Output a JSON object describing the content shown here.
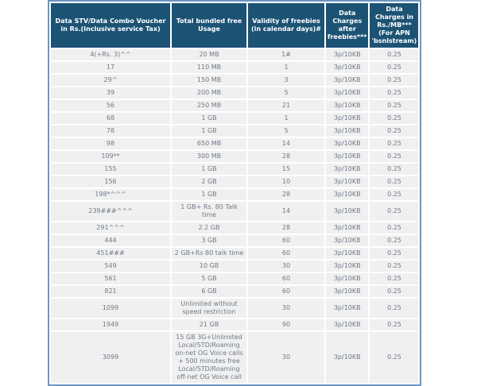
{
  "chart_data": {
    "type": "table",
    "title": "Data STV / Data Combo Voucher tariff table",
    "columns": [
      "Data STV/Data Combo Voucher in Rs.(Inclusive service Tax)",
      "Total bundled free Usage",
      "Validity of freebies (in calendar days)#",
      "Data Charges after freebies***",
      "Data Charges in Rs./MB*** (For APN 'bsnlstream)"
    ],
    "rows": [
      [
        "4(+Rs. 3)^^",
        "20 MB",
        "1#",
        "3p/10KB",
        "0.25"
      ],
      [
        "17",
        "110 MB",
        "1",
        "3p/10KB",
        "0.25"
      ],
      [
        "29^",
        "150 MB",
        "3",
        "3p/10KB",
        "0.25"
      ],
      [
        "39",
        "200 MB",
        "5",
        "3p/10KB",
        "0.25"
      ],
      [
        "56",
        "250 MB",
        "21",
        "3p/10KB",
        "0.25"
      ],
      [
        "68",
        "1 GB",
        "1",
        "3p/10KB",
        "0.25"
      ],
      [
        "78",
        "1 GB",
        "5",
        "3p/10KB",
        "0.25"
      ],
      [
        "98",
        "650 MB",
        "14",
        "3p/10KB",
        "0.25"
      ],
      [
        "109**",
        "300 MB",
        "28",
        "3p/10KB",
        "0.25"
      ],
      [
        "155",
        "1 GB",
        "15",
        "3p/10KB",
        "0.25"
      ],
      [
        "156",
        "2 GB",
        "10",
        "3p/10KB",
        "0.25"
      ],
      [
        "198*^^^",
        "1 GB",
        "28",
        "3p/10KB",
        "0.25"
      ],
      [
        "239###^^^",
        "1 GB+ Rs. 80 Talk time",
        "14",
        "3p/10KB",
        "0.25"
      ],
      [
        "291^^^",
        "2.2 GB",
        "28",
        "3p/10KB",
        "0.25"
      ],
      [
        "444",
        "3 GB",
        "60",
        "3p/10KB",
        "0.25"
      ],
      [
        "451###",
        "2 GB+Rs 80 talk time",
        "60",
        "3p/10KB",
        "0.25"
      ],
      [
        "549",
        "10 GB",
        "30",
        "3p/10KB",
        "0.25"
      ],
      [
        "561",
        "5 GB",
        "60",
        "3p/10KB",
        "0.25"
      ],
      [
        "821",
        "6 GB",
        "60",
        "3p/10KB",
        "0.25"
      ],
      [
        "1099",
        "Unlimited without speed restriction",
        "30",
        "3p/10KB",
        "0.25"
      ],
      [
        "1949",
        "21 GB",
        "90",
        "3p/10KB",
        "0.25"
      ],
      [
        "3099",
        "15 GB 3G+Unlimited Local/STD/Roaming on-net OG Voice calls + 500 minutes free Local/STD/Roaming off-net OG Voice call",
        "30",
        "3p/10KB",
        "0.25"
      ]
    ],
    "layout_hints": {
      "grid": true,
      "header_position": "top",
      "cell_alignment": "center"
    },
    "colors": {
      "header_bg": "#1c5375",
      "header_text": "#ffffff",
      "row_bg": "#f0f0f1",
      "body_text": "#6e7a86",
      "table_border": "#6b96c1",
      "gap_lines": "#ffffff"
    }
  }
}
